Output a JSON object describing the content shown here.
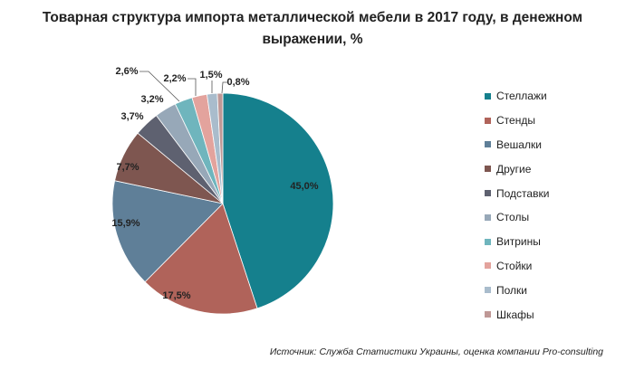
{
  "chart_data": {
    "type": "pie",
    "title": "Товарная структура импорта металлической мебели в 2017 году, в денежном выражении, %",
    "categories": [
      "Стеллажи",
      "Стенды",
      "Вешалки",
      "Другие",
      "Подставки",
      "Столы",
      "Витрины",
      "Стойки",
      "Полки",
      "Шкафы"
    ],
    "values": [
      45.0,
      17.5,
      15.9,
      7.7,
      3.7,
      3.2,
      2.6,
      2.2,
      1.5,
      0.8
    ],
    "value_labels": [
      "45,0%",
      "17,5%",
      "15,9%",
      "7,7%",
      "3,7%",
      "3,2%",
      "2,6%",
      "2,2%",
      "1,5%",
      "0,8%"
    ],
    "colors": [
      "#15808d",
      "#b0635a",
      "#5f7f98",
      "#7e5650",
      "#5e6170",
      "#97a8b8",
      "#6fb5bd",
      "#e3a39d",
      "#a9bccc",
      "#bf9896"
    ],
    "legend_position": "right",
    "source": "Источник: Служба Статистики Украины, оценка компании Pro-consulting"
  }
}
